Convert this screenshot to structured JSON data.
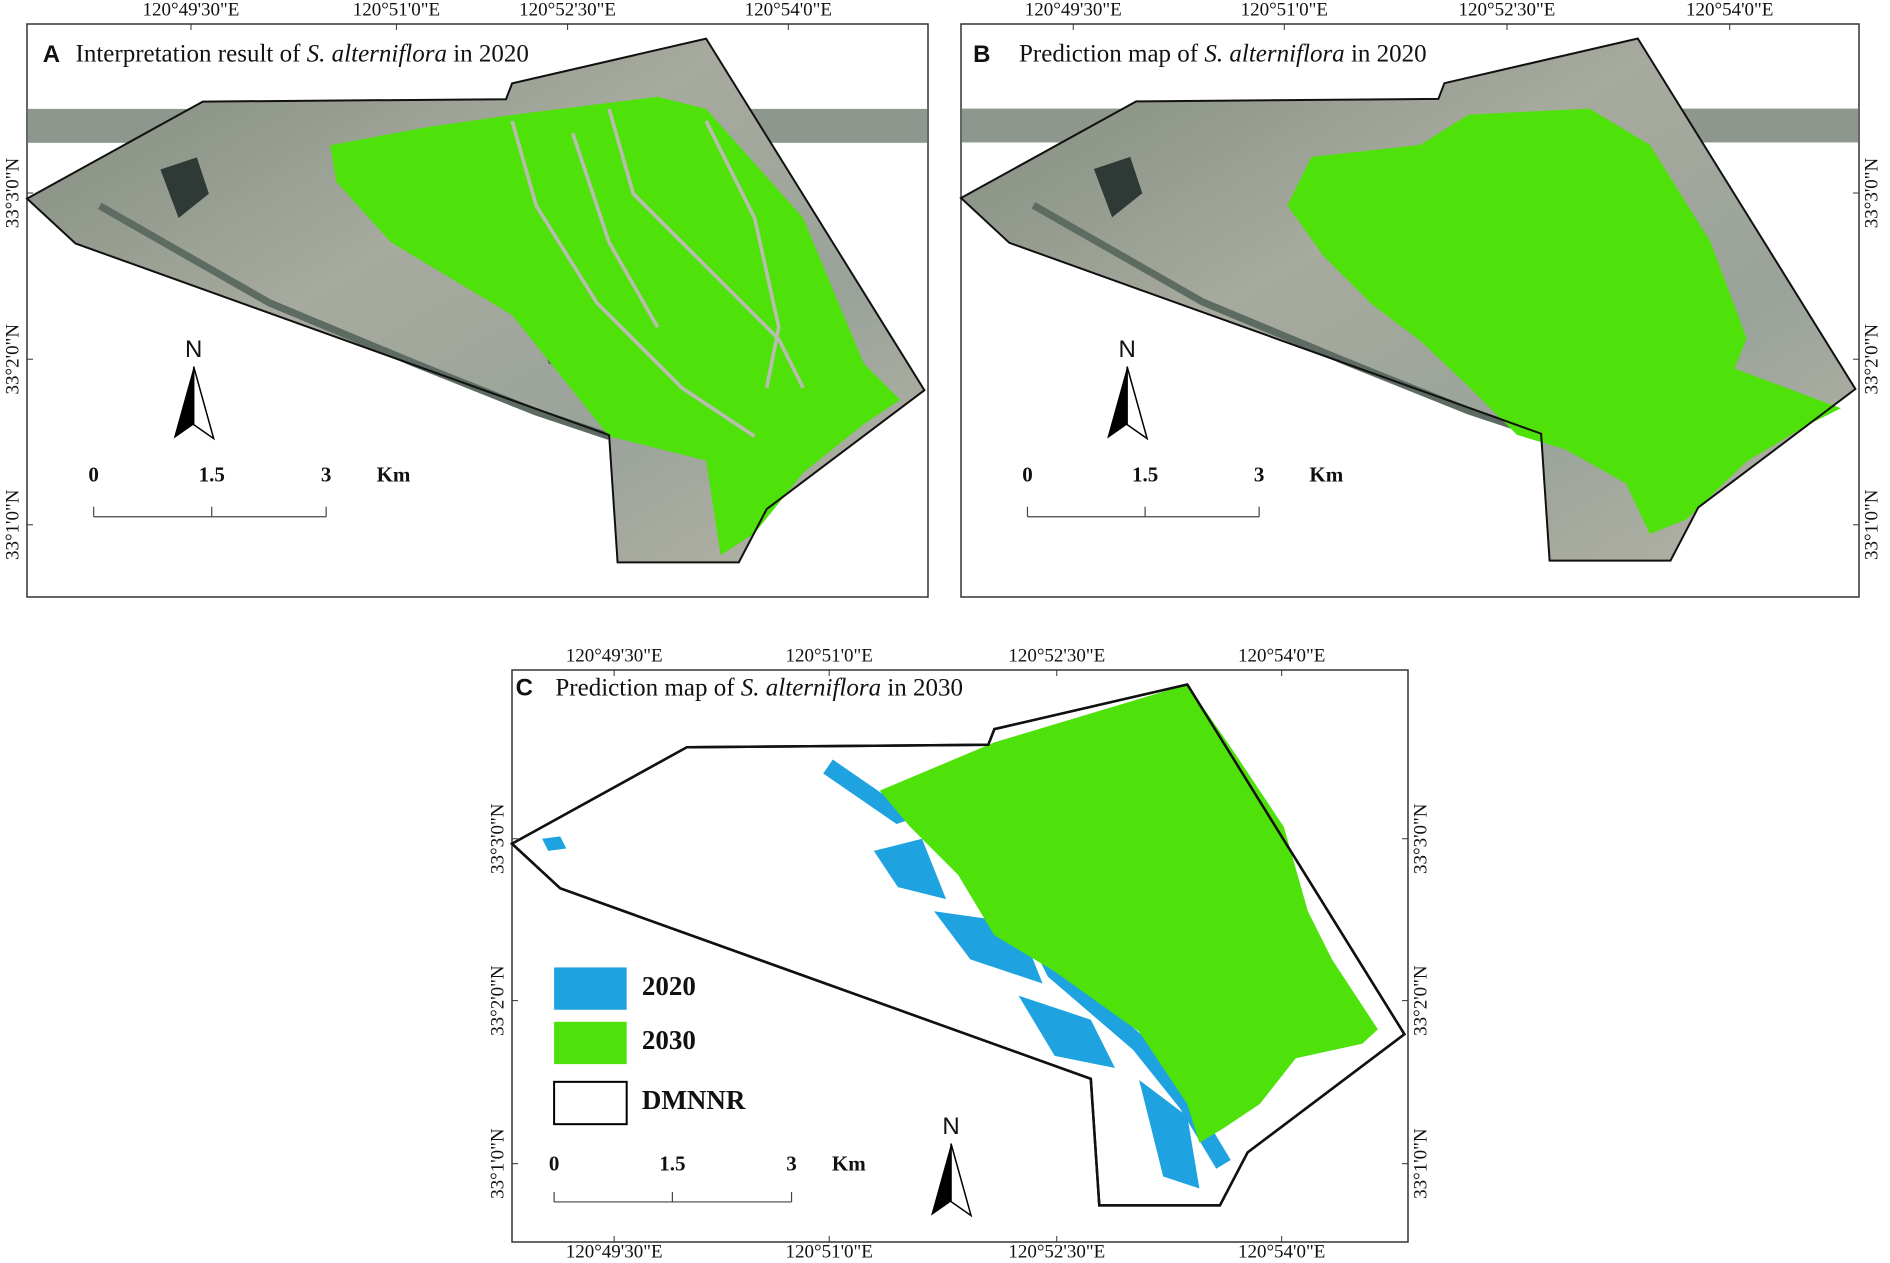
{
  "panels": [
    {
      "label": "A",
      "title": {
        "prefix": "Interpretation result of ",
        "species": "S. alterniflora",
        "suffix": " in 2020"
      },
      "top_lon_labels": [
        "120°49'30\"E",
        "120°51'0\"E",
        "120°52'30\"E",
        "120°54'0\"E"
      ],
      "left_lat_labels": [
        "33°3'0\"N",
        "33°2'0\"N",
        "33°1'0\"N"
      ],
      "scale_bar": {
        "labels": [
          "0",
          "1.5",
          "3"
        ],
        "unit": "Km"
      },
      "north": "N"
    },
    {
      "label": "B",
      "title": {
        "prefix": "Prediction map of ",
        "species": "S. alterniflora",
        "suffix": " in 2020"
      },
      "top_lon_labels": [
        "120°49'30\"E",
        "120°51'0\"E",
        "120°52'30\"E",
        "120°54'0\"E"
      ],
      "right_lat_labels": [
        "33°3'0\"N",
        "33°2'0\"N",
        "33°1'0\"N"
      ],
      "scale_bar": {
        "labels": [
          "0",
          "1.5",
          "3"
        ],
        "unit": "Km"
      },
      "north": "N"
    },
    {
      "label": "C",
      "title": {
        "prefix": "Prediction map of ",
        "species": "S. alterniflora",
        "suffix": " in 2030"
      },
      "top_lon_labels": [
        "120°49'30\"E",
        "120°51'0\"E",
        "120°52'30\"E",
        "120°54'0\"E"
      ],
      "bottom_lon_labels": [
        "120°49'30\"E",
        "120°51'0\"E",
        "120°52'30\"E",
        "120°54'0\"E"
      ],
      "left_lat_labels": [
        "33°3'0\"N",
        "33°2'0\"N",
        "33°1'0\"N"
      ],
      "right_lat_labels": [
        "33°3'0\"N",
        "33°2'0\"N",
        "33°1'0\"N"
      ],
      "scale_bar": {
        "labels": [
          "0",
          "1.5",
          "3"
        ],
        "unit": "Km"
      },
      "north": "N",
      "legend": [
        {
          "label": "2020",
          "color": "#1fa3e0"
        },
        {
          "label": "2030",
          "color": "#4ee10a"
        },
        {
          "label": "DMNNR",
          "color": "#ffffff"
        }
      ]
    }
  ]
}
